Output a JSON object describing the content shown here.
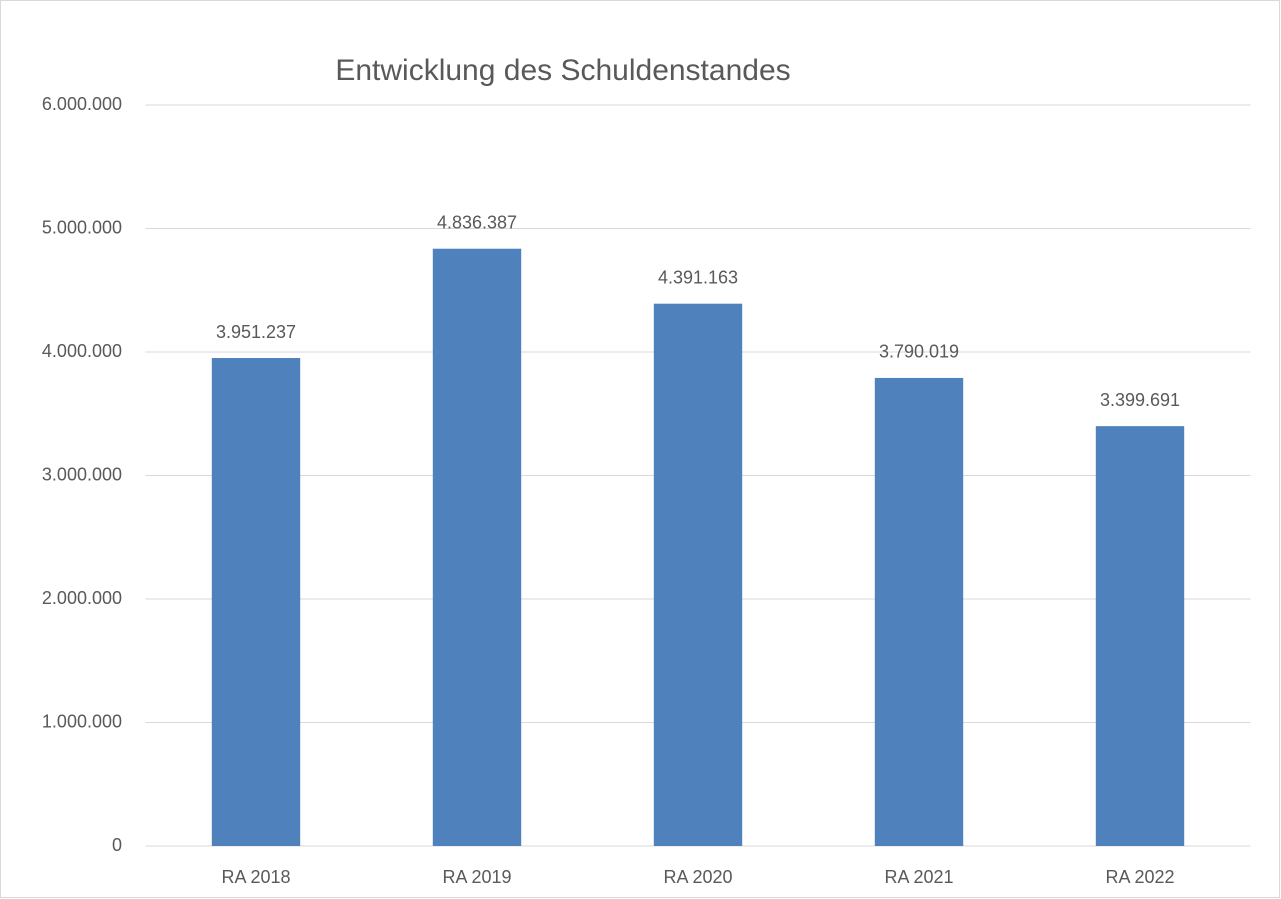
{
  "chart_data": {
    "type": "bar",
    "title": "Entwicklung des Schuldenstandes",
    "categories": [
      "RA 2018",
      "RA 2019",
      "RA 2020",
      "RA 2021",
      "RA 2022"
    ],
    "values": [
      3951237,
      4836387,
      4391163,
      3790019,
      3399691
    ],
    "value_labels": [
      "3.951.237",
      "4.836.387",
      "4.391.163",
      "3.790.019",
      "3.399.691"
    ],
    "color": "#4f81bd",
    "ylim": [
      0,
      6000000
    ],
    "yticks": [
      0,
      {
        "value": 1000000,
        "label": "1.000.000"
      },
      {
        "value": 2000000,
        "label": "2.000.000"
      },
      {
        "value": 3000000,
        "label": "3.000.000"
      },
      {
        "value": 4000000,
        "label": "4.000.000"
      },
      {
        "value": 5000000,
        "label": "5.000.000"
      },
      {
        "value": 6000000,
        "label": "6.000.000"
      }
    ],
    "grid": true
  }
}
